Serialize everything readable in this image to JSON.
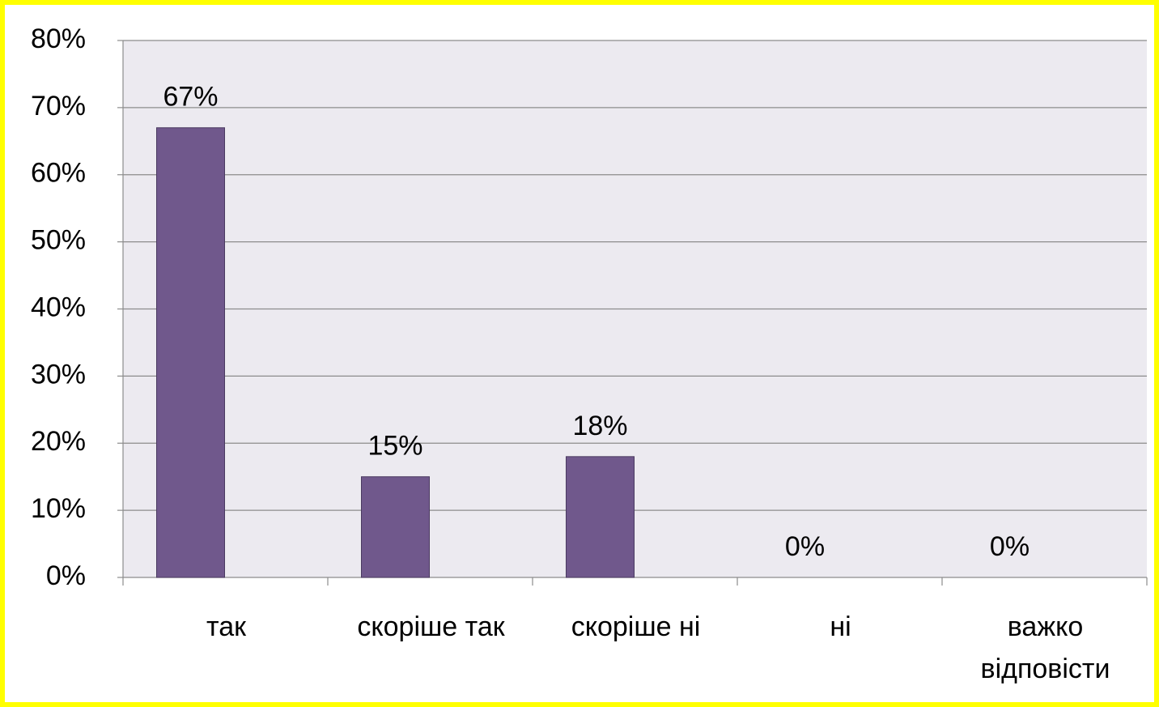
{
  "chart_data": {
    "type": "bar",
    "categories": [
      "так",
      "скоріше так",
      "скоріше ні",
      "ні",
      "важко відповісти"
    ],
    "values": [
      67,
      15,
      18,
      0,
      0
    ],
    "value_labels": [
      "67%",
      "15%",
      "18%",
      "0%",
      "0%"
    ],
    "color": "#70588c",
    "ylim": [
      0,
      80
    ],
    "yticks": [
      {
        "value": 0,
        "label": "0%"
      },
      {
        "value": 10,
        "label": "10%"
      },
      {
        "value": 20,
        "label": "20%"
      },
      {
        "value": 30,
        "label": "30%"
      },
      {
        "value": 40,
        "label": "40%"
      },
      {
        "value": 50,
        "label": "50%"
      },
      {
        "value": 60,
        "label": "60%"
      },
      {
        "value": 70,
        "label": "70%"
      },
      {
        "value": 80,
        "label": "80%"
      }
    ],
    "grid": true
  }
}
